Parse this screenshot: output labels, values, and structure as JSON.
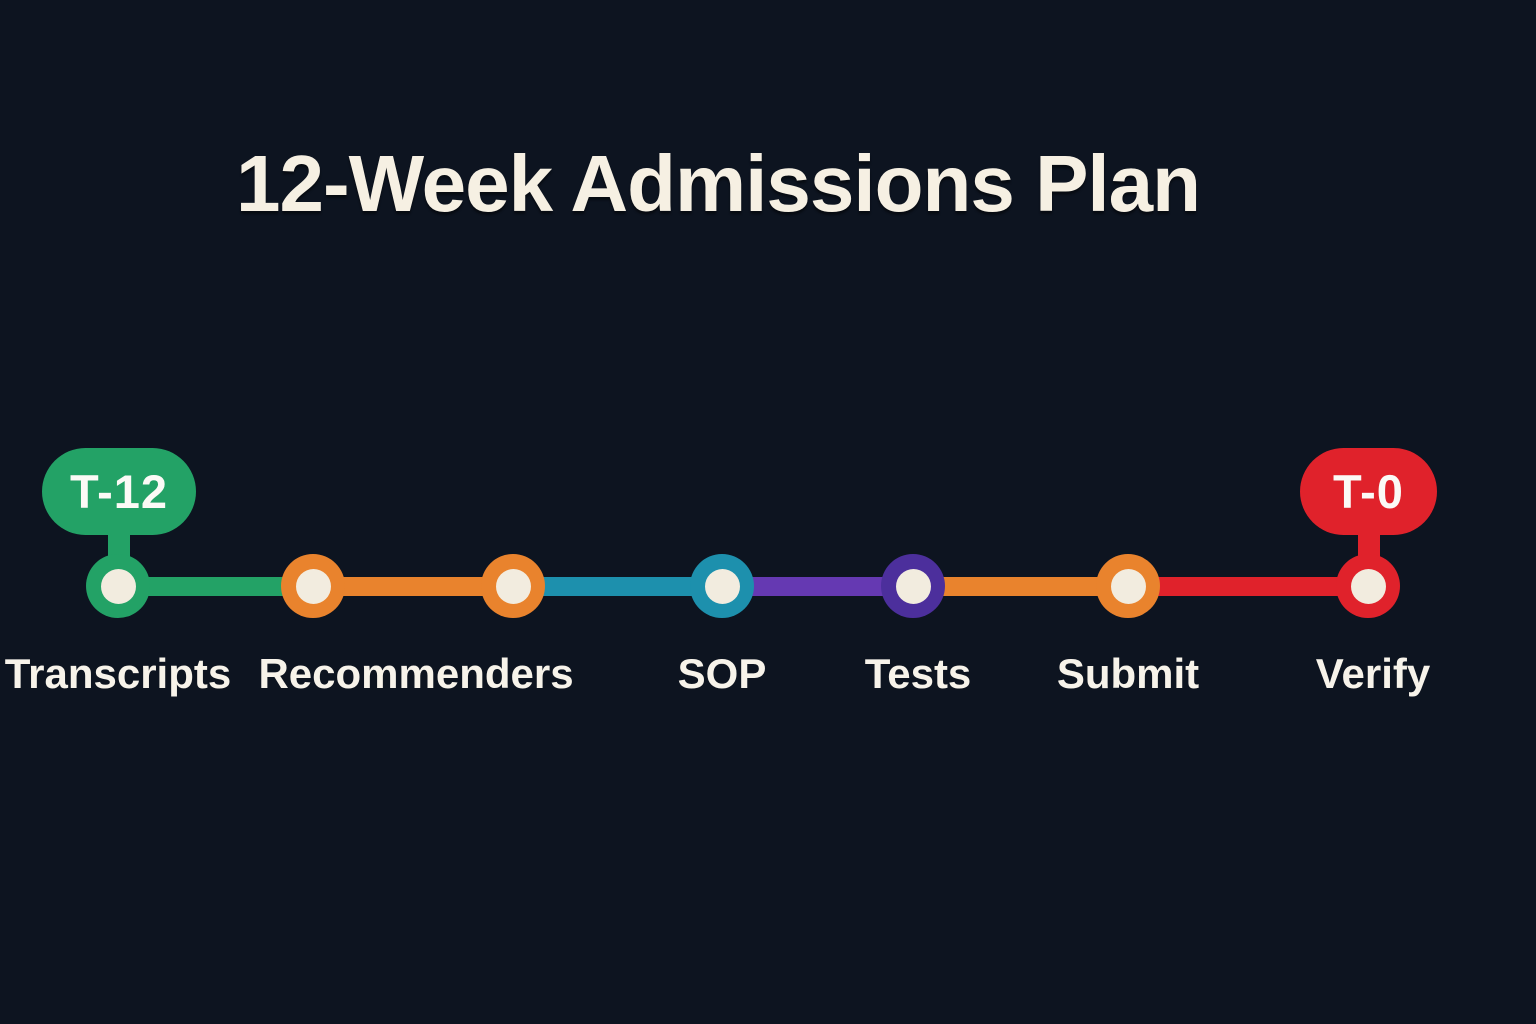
{
  "title": "12-Week Admissions Plan",
  "colors": {
    "background": "#0d1420",
    "heading_text": "#f6f0e3",
    "label_text": "#f7f3ea",
    "badge_text": "#fbfaf6",
    "node_inner": "#f2ecdf",
    "green": "#23a266",
    "orange": "#e9832d",
    "teal": "#1d90ad",
    "purple": "#4c2f9c",
    "purple_segment": "#6539b2",
    "red": "#e0222b"
  },
  "timeline": {
    "badges": [
      {
        "id": "start",
        "label": "T-12",
        "color": "#23a266"
      },
      {
        "id": "end",
        "label": "T-0",
        "color": "#e0222b"
      }
    ],
    "nodes": [
      {
        "step": "transcripts",
        "color": "#23a266"
      },
      {
        "step": "recommenders-a",
        "color": "#e9832d"
      },
      {
        "step": "recommenders-b",
        "color": "#e9832d"
      },
      {
        "step": "sop",
        "color": "#1d90ad"
      },
      {
        "step": "tests",
        "color": "#4c2f9c"
      },
      {
        "step": "submit",
        "color": "#e9832d"
      },
      {
        "step": "verify",
        "color": "#e0222b"
      }
    ],
    "segments": [
      {
        "from": "transcripts",
        "to": "recommenders-a",
        "color": "#23a266"
      },
      {
        "from": "recommenders-a",
        "to": "recommenders-b",
        "color": "#e9832d"
      },
      {
        "from": "recommenders-b",
        "to": "sop",
        "color": "#1d90ad"
      },
      {
        "from": "sop",
        "to": "tests",
        "color": "#6539b2"
      },
      {
        "from": "tests",
        "to": "submit",
        "color": "#e9832d"
      },
      {
        "from": "submit",
        "to": "verify",
        "color": "#e0222b"
      }
    ],
    "labels": [
      {
        "text": "Transcripts"
      },
      {
        "text": "Recommenders"
      },
      {
        "text": "SOP"
      },
      {
        "text": "Tests"
      },
      {
        "text": "Submit"
      },
      {
        "text": "Verify"
      }
    ]
  }
}
